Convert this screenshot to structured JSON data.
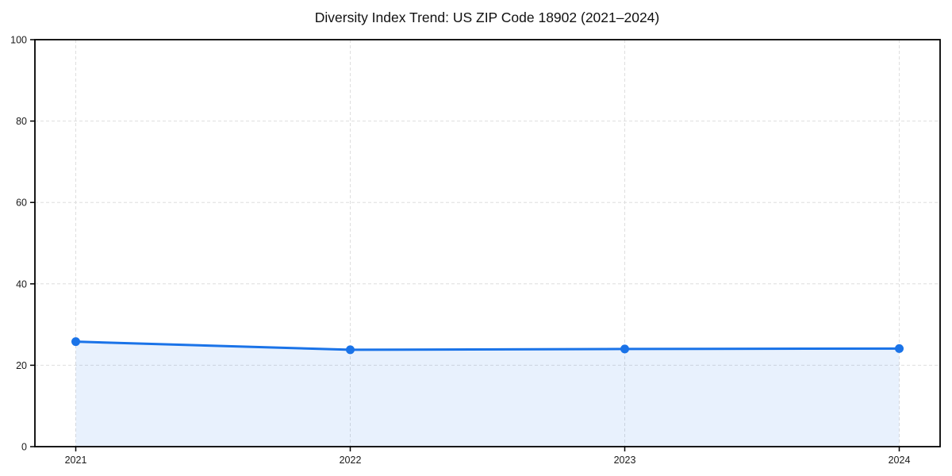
{
  "figure": {
    "background_color": "#ffffff"
  },
  "chart_data": {
    "type": "area",
    "title": "Diversity Index Trend: US ZIP Code 18902 (2021–2024)",
    "series_name": "Diversity Index",
    "categories": [
      "2021",
      "2022",
      "2023",
      "2024"
    ],
    "values": [
      25.8,
      23.8,
      24.0,
      24.1
    ],
    "xlabel": "",
    "ylabel": "",
    "ylim": [
      0,
      100
    ],
    "yticks": [
      0,
      20,
      40,
      60,
      80,
      100
    ],
    "grid": true,
    "grid_style": "dashed",
    "legend_position": "none",
    "line_color": "#1a73e8",
    "marker_color": "#1a73e8",
    "fill_color": "rgba(26,115,232,0.10)",
    "grid_color": "#dedede",
    "spine_color": "#000000",
    "tick_label_color": "#1a1a1a",
    "title_color": "#111111"
  }
}
